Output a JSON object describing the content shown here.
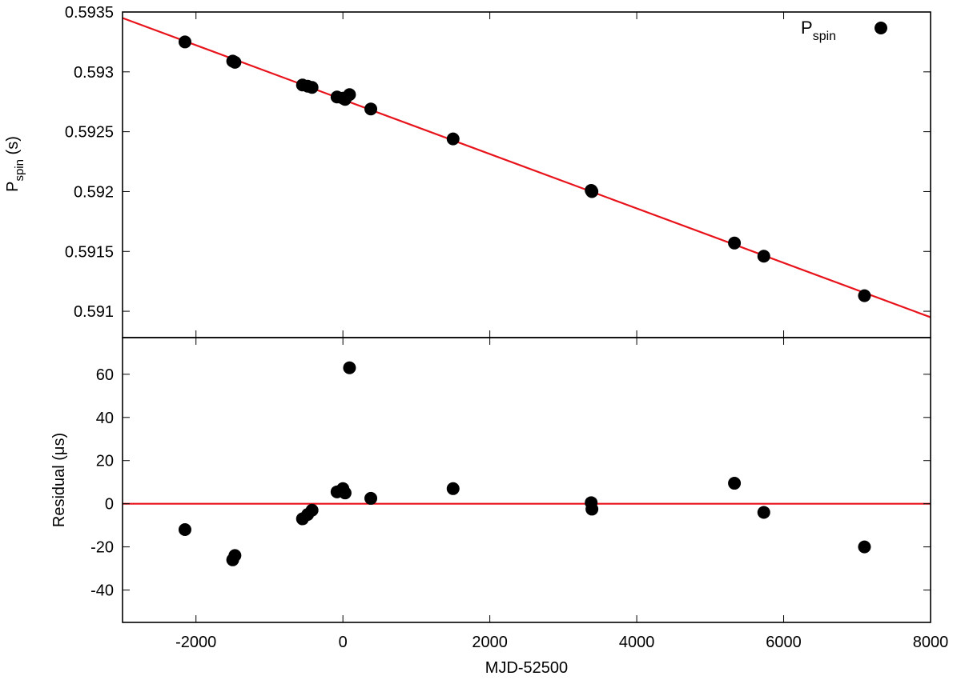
{
  "chart_data": [
    {
      "type": "scatter",
      "panel": "top",
      "xlabel": "",
      "ylabel_main": "P",
      "ylabel_sub": "spin",
      "ylabel_suffix": " (s)",
      "xlim": [
        -3000,
        8000
      ],
      "ylim": [
        0.59078,
        0.5935
      ],
      "yticks": [
        0.591,
        0.5915,
        0.592,
        0.5925,
        0.593,
        0.5935
      ],
      "ytick_labels": [
        "0.591",
        "0.5915",
        "0.592",
        "0.5925",
        "0.593",
        "0.5935"
      ],
      "legend": {
        "placement": "top-right",
        "label_main": "P",
        "label_sub": "spin"
      },
      "grid": false,
      "series": [
        {
          "name": "Pspin",
          "color": "#000000",
          "points": [
            {
              "x": -2150,
              "y": 0.59325
            },
            {
              "x": -1500,
              "y": 0.59309
            },
            {
              "x": -1470,
              "y": 0.59308
            },
            {
              "x": -550,
              "y": 0.59289
            },
            {
              "x": -480,
              "y": 0.59288
            },
            {
              "x": -420,
              "y": 0.59287
            },
            {
              "x": -80,
              "y": 0.59279
            },
            {
              "x": 0,
              "y": 0.59278
            },
            {
              "x": 30,
              "y": 0.59277
            },
            {
              "x": 90,
              "y": 0.59281
            },
            {
              "x": 380,
              "y": 0.59269
            },
            {
              "x": 1500,
              "y": 0.59244
            },
            {
              "x": 3380,
              "y": 0.59201
            },
            {
              "x": 3390,
              "y": 0.592
            },
            {
              "x": 5330,
              "y": 0.59157
            },
            {
              "x": 5730,
              "y": 0.59146
            },
            {
              "x": 7100,
              "y": 0.59113
            }
          ]
        }
      ],
      "fit_line": {
        "color": "#e8131a",
        "x": [
          -3000,
          8000
        ],
        "y": [
          0.59345,
          0.59095
        ]
      }
    },
    {
      "type": "scatter",
      "panel": "bottom",
      "xlabel": "MJD-52500",
      "ylabel": "Residual (μs)",
      "xlim": [
        -3000,
        8000
      ],
      "ylim": [
        -55,
        77
      ],
      "xticks": [
        -2000,
        0,
        2000,
        4000,
        6000,
        8000
      ],
      "xtick_labels": [
        "-2000",
        "0",
        "2000",
        "4000",
        "6000",
        "8000"
      ],
      "yticks": [
        -40,
        -20,
        0,
        20,
        40,
        60
      ],
      "ytick_labels": [
        "-40",
        "-20",
        "0",
        "20",
        "40",
        "60"
      ],
      "grid": false,
      "series": [
        {
          "name": "Residual",
          "color": "#000000",
          "points": [
            {
              "x": -2150,
              "y": -12
            },
            {
              "x": -1500,
              "y": -26
            },
            {
              "x": -1470,
              "y": -24
            },
            {
              "x": -550,
              "y": -7
            },
            {
              "x": -480,
              "y": -5
            },
            {
              "x": -420,
              "y": -3
            },
            {
              "x": -80,
              "y": 5.5
            },
            {
              "x": 0,
              "y": 7
            },
            {
              "x": 30,
              "y": 5
            },
            {
              "x": 90,
              "y": 63
            },
            {
              "x": 380,
              "y": 2.5
            },
            {
              "x": 1500,
              "y": 7
            },
            {
              "x": 3380,
              "y": 0.5
            },
            {
              "x": 3390,
              "y": -2.5
            },
            {
              "x": 5330,
              "y": 9.5
            },
            {
              "x": 5730,
              "y": -4
            },
            {
              "x": 7100,
              "y": -20
            }
          ]
        }
      ],
      "zero_line": {
        "color": "#e8131a",
        "y": 0
      }
    }
  ]
}
